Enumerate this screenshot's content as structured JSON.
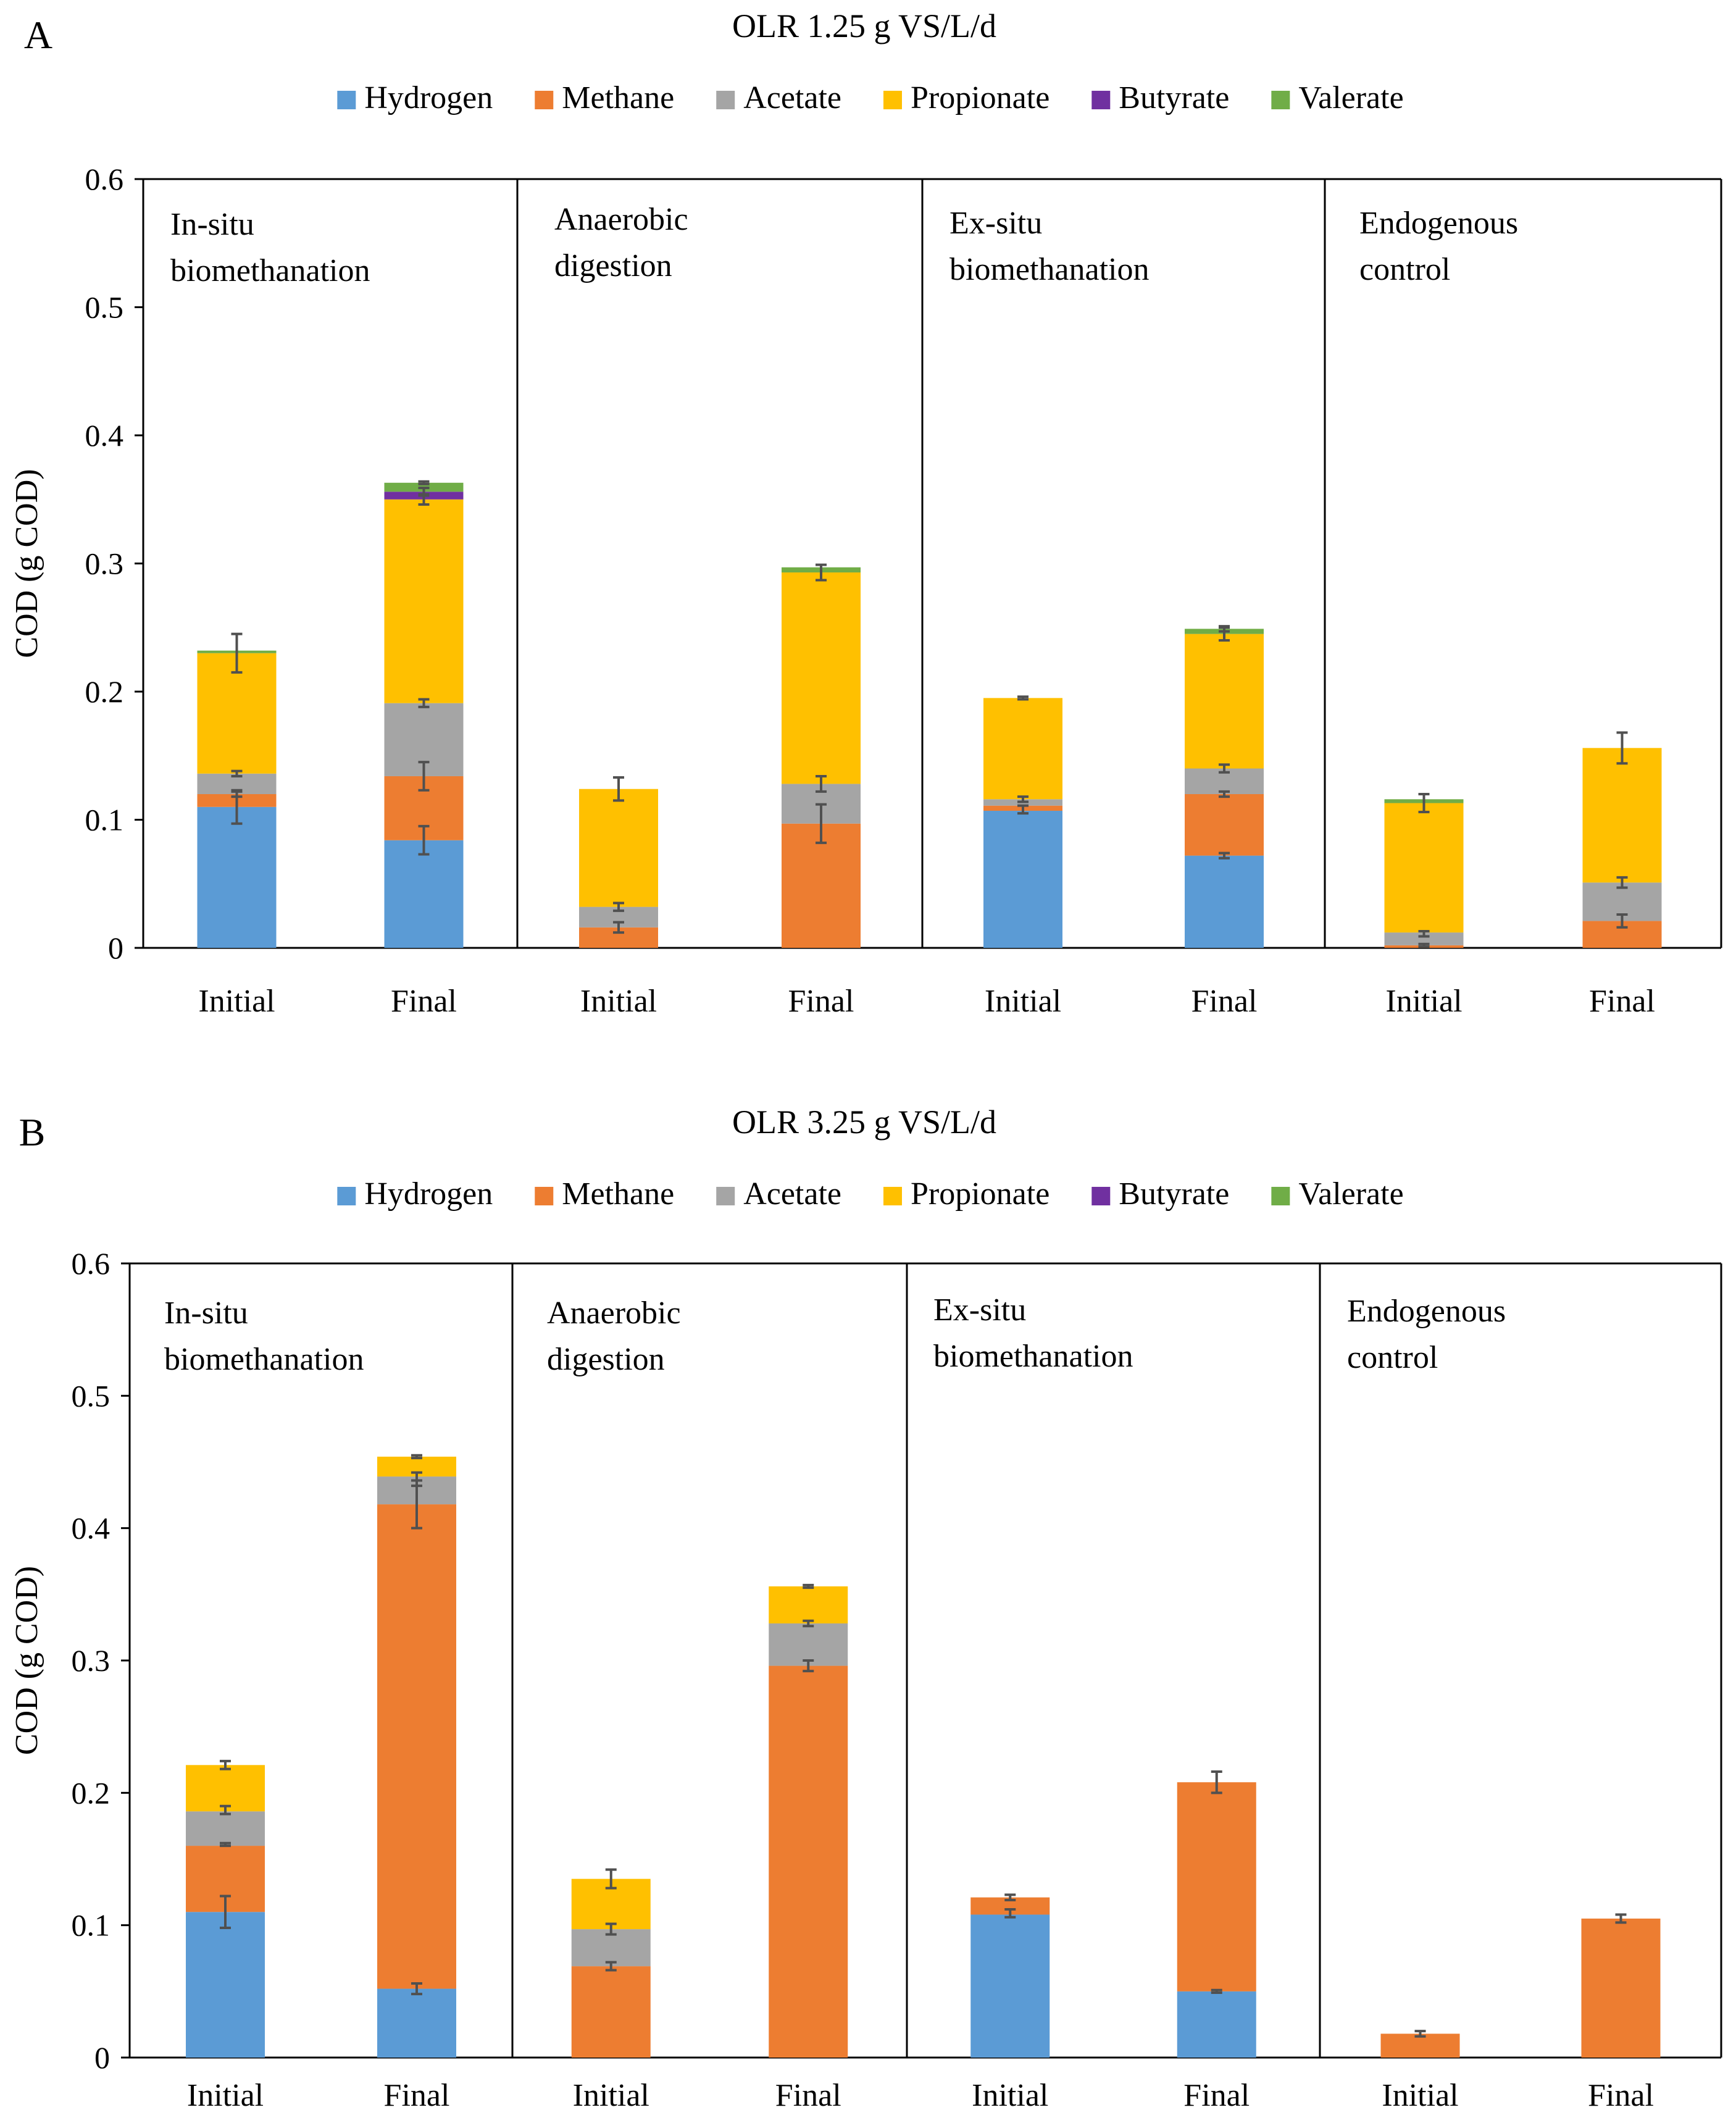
{
  "chart_data": [
    {
      "panel": "A",
      "type": "bar",
      "stacked": true,
      "title": "OLR 1.25 g VS/L/d",
      "ylabel": "COD (g COD)",
      "ylim": [
        0,
        0.6
      ],
      "yticks": [
        "0",
        "0.1",
        "0.2",
        "0.3",
        "0.4",
        "0.5",
        "0.6"
      ],
      "legend": [
        "Hydrogen",
        "Methane",
        "Acetate",
        "Propionate",
        "Butyrate",
        "Valerate"
      ],
      "colors": [
        "#5B9BD5",
        "#ED7D31",
        "#A5A5A5",
        "#FFC000",
        "#7030A0",
        "#70AD47"
      ],
      "groups": [
        {
          "label": [
            "In-situ",
            "biomethanation"
          ],
          "bars": [
            {
              "category": "Initial",
              "values": [
                0.11,
                0.01,
                0.016,
                0.094,
                0.0,
                0.002
              ],
              "errors": [
                {
                  "y": 0.11,
                  "e": 0.013
                },
                {
                  "y": 0.12,
                  "e": 0.002
                },
                {
                  "y": 0.136,
                  "e": 0.002
                },
                {
                  "y": 0.23,
                  "e": 0.015
                }
              ]
            },
            {
              "category": "Final",
              "values": [
                0.084,
                0.05,
                0.057,
                0.159,
                0.006,
                0.007
              ],
              "errors": [
                {
                  "y": 0.084,
                  "e": 0.011
                },
                {
                  "y": 0.134,
                  "e": 0.011
                },
                {
                  "y": 0.191,
                  "e": 0.003
                },
                {
                  "y": 0.35,
                  "e": 0.004
                },
                {
                  "y": 0.356,
                  "e": 0.003
                },
                {
                  "y": 0.363,
                  "e": 0.001
                }
              ]
            }
          ]
        },
        {
          "label": [
            "Anaerobic",
            "digestion"
          ],
          "bars": [
            {
              "category": "Initial",
              "values": [
                0.0,
                0.016,
                0.016,
                0.092,
                0.0,
                0.0
              ],
              "errors": [
                {
                  "y": 0.016,
                  "e": 0.004
                },
                {
                  "y": 0.032,
                  "e": 0.003
                },
                {
                  "y": 0.124,
                  "e": 0.009
                }
              ]
            },
            {
              "category": "Final",
              "values": [
                0.0,
                0.097,
                0.031,
                0.165,
                0.0,
                0.004
              ],
              "errors": [
                {
                  "y": 0.097,
                  "e": 0.015
                },
                {
                  "y": 0.128,
                  "e": 0.006
                },
                {
                  "y": 0.293,
                  "e": 0.006
                }
              ]
            }
          ]
        },
        {
          "label": [
            "Ex-situ",
            "biomethanation"
          ],
          "bars": [
            {
              "category": "Initial",
              "values": [
                0.107,
                0.004,
                0.005,
                0.079,
                0.0,
                0.0
              ],
              "errors": [
                {
                  "y": 0.108,
                  "e": 0.003
                },
                {
                  "y": 0.116,
                  "e": 0.002
                },
                {
                  "y": 0.195,
                  "e": 0.001
                }
              ]
            },
            {
              "category": "Final",
              "values": [
                0.072,
                0.048,
                0.02,
                0.105,
                0.0,
                0.004
              ],
              "errors": [
                {
                  "y": 0.072,
                  "e": 0.002
                },
                {
                  "y": 0.12,
                  "e": 0.002
                },
                {
                  "y": 0.14,
                  "e": 0.003
                },
                {
                  "y": 0.245,
                  "e": 0.005
                },
                {
                  "y": 0.249,
                  "e": 0.002
                }
              ]
            }
          ]
        },
        {
          "label": [
            "Endogenous",
            "control"
          ],
          "bars": [
            {
              "category": "Initial",
              "values": [
                0.0,
                0.002,
                0.01,
                0.101,
                0.0,
                0.003
              ],
              "errors": [
                {
                  "y": 0.002,
                  "e": 0.001
                },
                {
                  "y": 0.011,
                  "e": 0.002
                },
                {
                  "y": 0.113,
                  "e": 0.007
                }
              ]
            },
            {
              "category": "Final",
              "values": [
                0.0,
                0.021,
                0.03,
                0.105,
                0.0,
                0.0
              ],
              "errors": [
                {
                  "y": 0.021,
                  "e": 0.005
                },
                {
                  "y": 0.051,
                  "e": 0.004
                },
                {
                  "y": 0.156,
                  "e": 0.012
                }
              ]
            }
          ]
        }
      ]
    },
    {
      "panel": "B",
      "type": "bar",
      "stacked": true,
      "title": "OLR 3.25 g VS/L/d",
      "ylabel": "COD (g COD)",
      "ylim": [
        0,
        0.6
      ],
      "yticks": [
        "0",
        "0.1",
        "0.2",
        "0.3",
        "0.4",
        "0.5",
        "0.6"
      ],
      "legend": [
        "Hydrogen",
        "Methane",
        "Acetate",
        "Propionate",
        "Butyrate",
        "Valerate"
      ],
      "colors": [
        "#5B9BD5",
        "#ED7D31",
        "#A5A5A5",
        "#FFC000",
        "#7030A0",
        "#70AD47"
      ],
      "groups": [
        {
          "label": [
            "In-situ",
            "biomethanation"
          ],
          "bars": [
            {
              "category": "Initial",
              "values": [
                0.11,
                0.05,
                0.026,
                0.035,
                0.0,
                0.0
              ],
              "errors": [
                {
                  "y": 0.11,
                  "e": 0.012
                },
                {
                  "y": 0.161,
                  "e": 0.001
                },
                {
                  "y": 0.187,
                  "e": 0.003
                },
                {
                  "y": 0.221,
                  "e": 0.003
                }
              ]
            },
            {
              "category": "Final",
              "values": [
                0.052,
                0.366,
                0.021,
                0.015,
                0.0,
                0.0
              ],
              "errors": [
                {
                  "y": 0.052,
                  "e": 0.004
                },
                {
                  "y": 0.418,
                  "e": 0.018
                },
                {
                  "y": 0.437,
                  "e": 0.005
                },
                {
                  "y": 0.454,
                  "e": 0.001
                }
              ]
            }
          ]
        },
        {
          "label": [
            "Anaerobic",
            "digestion"
          ],
          "bars": [
            {
              "category": "Initial",
              "values": [
                0.0,
                0.069,
                0.028,
                0.038,
                0.0,
                0.0
              ],
              "errors": [
                {
                  "y": 0.069,
                  "e": 0.003
                },
                {
                  "y": 0.097,
                  "e": 0.004
                },
                {
                  "y": 0.135,
                  "e": 0.007
                }
              ]
            },
            {
              "category": "Final",
              "values": [
                0.0,
                0.296,
                0.032,
                0.028,
                0.0,
                0.0
              ],
              "errors": [
                {
                  "y": 0.296,
                  "e": 0.004
                },
                {
                  "y": 0.328,
                  "e": 0.002
                },
                {
                  "y": 0.356,
                  "e": 0.001
                }
              ]
            }
          ]
        },
        {
          "label": [
            "Ex-situ",
            "biomethanation"
          ],
          "bars": [
            {
              "category": "Initial",
              "values": [
                0.108,
                0.013,
                0.0,
                0.0,
                0.0,
                0.0
              ],
              "errors": [
                {
                  "y": 0.109,
                  "e": 0.003
                },
                {
                  "y": 0.121,
                  "e": 0.002
                }
              ]
            },
            {
              "category": "Final",
              "values": [
                0.05,
                0.158,
                0.0,
                0.0,
                0.0,
                0.0
              ],
              "errors": [
                {
                  "y": 0.05,
                  "e": 0.001
                },
                {
                  "y": 0.208,
                  "e": 0.008
                }
              ]
            }
          ]
        },
        {
          "label": [
            "Endogenous",
            "control"
          ],
          "bars": [
            {
              "category": "Initial",
              "values": [
                0.0,
                0.018,
                0.0,
                0.0,
                0.0,
                0.0
              ],
              "errors": [
                {
                  "y": 0.018,
                  "e": 0.002
                }
              ]
            },
            {
              "category": "Final",
              "values": [
                0.0,
                0.105,
                0.0,
                0.0,
                0.0,
                0.0
              ],
              "errors": [
                {
                  "y": 0.105,
                  "e": 0.003
                }
              ]
            }
          ]
        }
      ]
    }
  ]
}
